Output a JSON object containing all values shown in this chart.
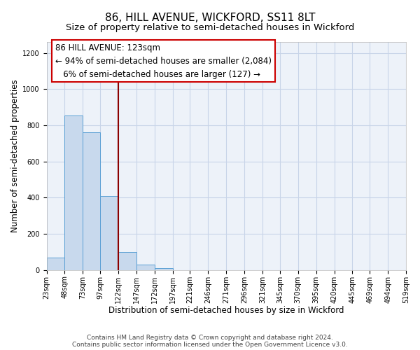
{
  "title": "86, HILL AVENUE, WICKFORD, SS11 8LT",
  "subtitle": "Size of property relative to semi-detached houses in Wickford",
  "xlabel": "Distribution of semi-detached houses by size in Wickford",
  "ylabel": "Number of semi-detached properties",
  "bar_edges": [
    23,
    48,
    73,
    97,
    122,
    147,
    172,
    197,
    221,
    246,
    271,
    296,
    321,
    345,
    370,
    395,
    420,
    445,
    469,
    494,
    519
  ],
  "bar_heights": [
    70,
    855,
    760,
    410,
    100,
    30,
    10,
    0,
    0,
    0,
    0,
    0,
    0,
    0,
    0,
    0,
    0,
    0,
    0,
    0
  ],
  "bar_color": "#c8d9ed",
  "bar_edge_color": "#5a9fd4",
  "property_line_x": 122,
  "property_line_color": "#8b0000",
  "ann_line1": "86 HILL AVENUE: 123sqm",
  "ann_line2": "← 94% of semi-detached houses are smaller (2,084)",
  "ann_line3": "   6% of semi-detached houses are larger (127) →",
  "annotation_box_color": "#ffffff",
  "annotation_box_edge_color": "#cc0000",
  "ylim": [
    0,
    1260
  ],
  "yticks": [
    0,
    200,
    400,
    600,
    800,
    1000,
    1200
  ],
  "xlim_left": 23,
  "xlim_right": 519,
  "tick_labels": [
    "23sqm",
    "48sqm",
    "73sqm",
    "97sqm",
    "122sqm",
    "147sqm",
    "172sqm",
    "197sqm",
    "221sqm",
    "246sqm",
    "271sqm",
    "296sqm",
    "321sqm",
    "345sqm",
    "370sqm",
    "395sqm",
    "420sqm",
    "445sqm",
    "469sqm",
    "494sqm",
    "519sqm"
  ],
  "grid_color": "#c8d4e8",
  "bg_color": "#edf2f9",
  "footer_line1": "Contains HM Land Registry data © Crown copyright and database right 2024.",
  "footer_line2": "Contains public sector information licensed under the Open Government Licence v3.0.",
  "title_fontsize": 11,
  "subtitle_fontsize": 9.5,
  "axis_label_fontsize": 8.5,
  "tick_fontsize": 7,
  "annotation_fontsize": 8.5,
  "footer_fontsize": 6.5
}
